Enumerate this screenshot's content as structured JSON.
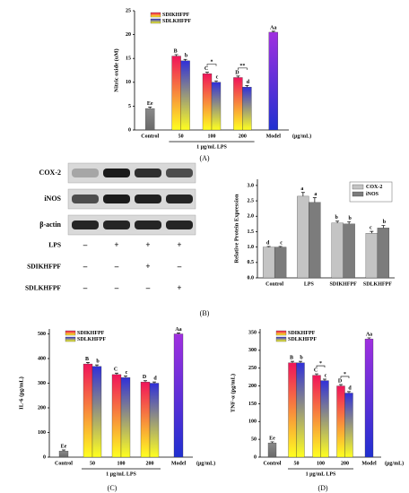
{
  "chart_data": [
    {
      "type": "bar",
      "panel_label": "(A)",
      "ylabel": "Nitric oxide (uM)",
      "categories": [
        "Control",
        "50",
        "100",
        "200",
        "Model"
      ],
      "x_unit": "(μg/mL)",
      "group_label": "1 μg/mL LPS",
      "legend": "upper left",
      "series": [
        {
          "name": "SDIKHFPF",
          "color": "#f0145a",
          "color2": "#ffff20",
          "values": [
            null,
            15.5,
            11.8,
            11,
            null
          ],
          "errors": [
            null,
            0.3,
            0.3,
            0.3,
            null
          ],
          "letters": [
            null,
            "B",
            "C",
            "D",
            null
          ]
        },
        {
          "name": "SDLKHFPF",
          "color": "#3030d8",
          "color2": "#ffff20",
          "values": [
            null,
            14.5,
            10,
            9,
            null
          ],
          "errors": [
            null,
            0.3,
            0.3,
            0.3,
            null
          ],
          "letters": [
            null,
            "b",
            "c",
            "d",
            null
          ]
        }
      ],
      "single": {
        "values": [
          4.5,
          null,
          null,
          null,
          20.5
        ],
        "errors": [
          0.3,
          null,
          null,
          null,
          0.2
        ],
        "letters": [
          "Ee",
          null,
          null,
          null,
          "Aa"
        ],
        "colors": [
          "#8a8a8a",
          null,
          null,
          null,
          "#a030e0"
        ],
        "colors2": [
          "#6a6a6a",
          null,
          null,
          null,
          "#2030d0"
        ]
      },
      "asterisks": [
        null,
        null,
        "*",
        "**",
        null
      ],
      "ylim": [
        0,
        25
      ],
      "yticks": [
        0,
        5,
        10,
        15,
        20,
        25
      ]
    },
    {
      "type": "blot",
      "bands": [
        "COX-2",
        "iNOS",
        "β-actin"
      ],
      "treatments": [
        {
          "name": "LPS",
          "signs": [
            "–",
            "+",
            "+",
            "+"
          ]
        },
        {
          "name": "SDIKHFPF",
          "signs": [
            "–",
            "–",
            "+",
            "–"
          ]
        },
        {
          "name": "SDLKHFPF",
          "signs": [
            "–",
            "–",
            "–",
            "+"
          ]
        }
      ]
    },
    {
      "type": "bar",
      "panel_label": "(B)",
      "ylabel": "Relative Protein Expression",
      "categories": [
        "Control",
        "LPS",
        "SDIKHFPF",
        "SDLKHFPF"
      ],
      "legend": "upper right",
      "series": [
        {
          "name": "COX-2",
          "color": "#c4c4c4",
          "color2": "#c4c4c4",
          "values": [
            1.0,
            2.65,
            1.78,
            1.45
          ],
          "errors": [
            0.02,
            0.12,
            0.06,
            0.06
          ],
          "letters": [
            "d",
            "a",
            "b",
            "c"
          ]
        },
        {
          "name": "iNOS",
          "color": "#7c7c7c",
          "color2": "#7c7c7c",
          "values": [
            1.0,
            2.45,
            1.75,
            1.62
          ],
          "errors": [
            0.02,
            0.15,
            0.07,
            0.08
          ],
          "letters": [
            "c",
            "a",
            "b",
            "b"
          ]
        }
      ],
      "ylim": [
        0,
        3.2
      ],
      "yticks": [
        {
          "value": 0,
          "label": "0.0"
        },
        0.5,
        {
          "value": 1,
          "label": "1.0"
        },
        1.5,
        {
          "value": 2,
          "label": "2.0"
        },
        2.5,
        {
          "value": 3,
          "label": "3.0"
        }
      ]
    },
    {
      "type": "bar",
      "panel_label": "(C)",
      "ylabel": "IL-6 (pg/mL)",
      "categories": [
        "Control",
        "50",
        "100",
        "200",
        "Model"
      ],
      "x_unit": "(μg/mL)",
      "group_label": "1 μg/mL LPS",
      "legend": "upper left",
      "series": [
        {
          "name": "SDIKHFPF",
          "color": "#f0145a",
          "color2": "#ffff20",
          "values": [
            null,
            378,
            335,
            305,
            null
          ],
          "errors": [
            null,
            6,
            6,
            5,
            null
          ],
          "letters": [
            null,
            "B",
            "C",
            "D",
            null
          ]
        },
        {
          "name": "SDLKHFPF",
          "color": "#3030d8",
          "color2": "#ffff20",
          "values": [
            null,
            368,
            323,
            300,
            null
          ],
          "errors": [
            null,
            6,
            6,
            5,
            null
          ],
          "letters": [
            null,
            "b",
            "c",
            "d",
            null
          ]
        }
      ],
      "single": {
        "values": [
          25,
          null,
          null,
          null,
          500
        ],
        "errors": [
          4,
          null,
          null,
          null,
          4
        ],
        "letters": [
          "Ee",
          null,
          null,
          null,
          "Aa"
        ],
        "colors": [
          "#8a8a8a",
          null,
          null,
          null,
          "#a030e0"
        ],
        "colors2": [
          "#6a6a6a",
          null,
          null,
          null,
          "#2030d0"
        ]
      },
      "asterisks": [
        null,
        null,
        null,
        null,
        null
      ],
      "ylim": [
        0,
        520
      ],
      "yticks": [
        0,
        100,
        200,
        300,
        400,
        500
      ]
    },
    {
      "type": "bar",
      "panel_label": "(D)",
      "ylabel": "TNF-α (pg/mL)",
      "categories": [
        "Control",
        "50",
        "100",
        "200",
        "Model"
      ],
      "x_unit": "(μg/mL)",
      "group_label": "1 μg/mL LPS",
      "legend": "upper left",
      "series": [
        {
          "name": "SDIKHFPF",
          "color": "#f0145a",
          "color2": "#ffff20",
          "values": [
            null,
            265,
            230,
            200,
            null
          ],
          "errors": [
            null,
            4,
            4,
            4,
            null
          ],
          "letters": [
            null,
            "B",
            "C",
            "D",
            null
          ]
        },
        {
          "name": "SDLKHFPF",
          "color": "#3030d8",
          "color2": "#ffff20",
          "values": [
            null,
            265,
            215,
            180,
            null
          ],
          "errors": [
            null,
            4,
            4,
            4,
            null
          ],
          "letters": [
            null,
            "b",
            "c",
            "d",
            null
          ]
        }
      ],
      "single": {
        "values": [
          40,
          null,
          null,
          null,
          332
        ],
        "errors": [
          3,
          null,
          null,
          null,
          3
        ],
        "letters": [
          "Ee",
          null,
          null,
          null,
          "Aa"
        ],
        "colors": [
          "#8a8a8a",
          null,
          null,
          null,
          "#a030e0"
        ],
        "colors2": [
          "#6a6a6a",
          null,
          null,
          null,
          "#2030d0"
        ]
      },
      "asterisks": [
        null,
        null,
        "*",
        "*",
        null
      ],
      "ylim": [
        0,
        360
      ],
      "yticks": [
        0,
        50,
        100,
        150,
        200,
        250,
        300,
        350
      ]
    }
  ]
}
